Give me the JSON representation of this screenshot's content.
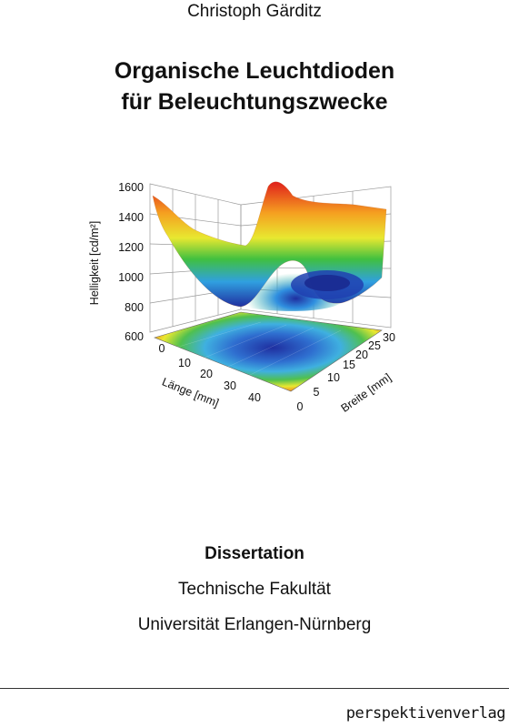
{
  "cover": {
    "author": "Christoph Gärditz",
    "title_line1": "Organische Leuchtdioden",
    "title_line2": "für Beleuchtungszwecke",
    "dissertation": "Dissertation",
    "faculty": "Technische Fakultät",
    "university": "Universität Erlangen-Nürnberg",
    "publisher": "perspektivenverlag"
  },
  "chart_data": {
    "type": "surface3d",
    "zlabel": "Helligkeit [cd/m²]",
    "xlabel": "Länge [mm]",
    "ylabel": "Breite [mm]",
    "z_ticks": [
      "1600",
      "1400",
      "1200",
      "1000",
      "800",
      "600"
    ],
    "x_ticks": [
      "0",
      "10",
      "20",
      "30",
      "40"
    ],
    "y_ticks": [
      "0",
      "5",
      "10",
      "15",
      "20",
      "25",
      "30"
    ],
    "zlim": [
      600,
      1600
    ],
    "xlim": [
      0,
      45
    ],
    "ylim": [
      0,
      30
    ]
  }
}
